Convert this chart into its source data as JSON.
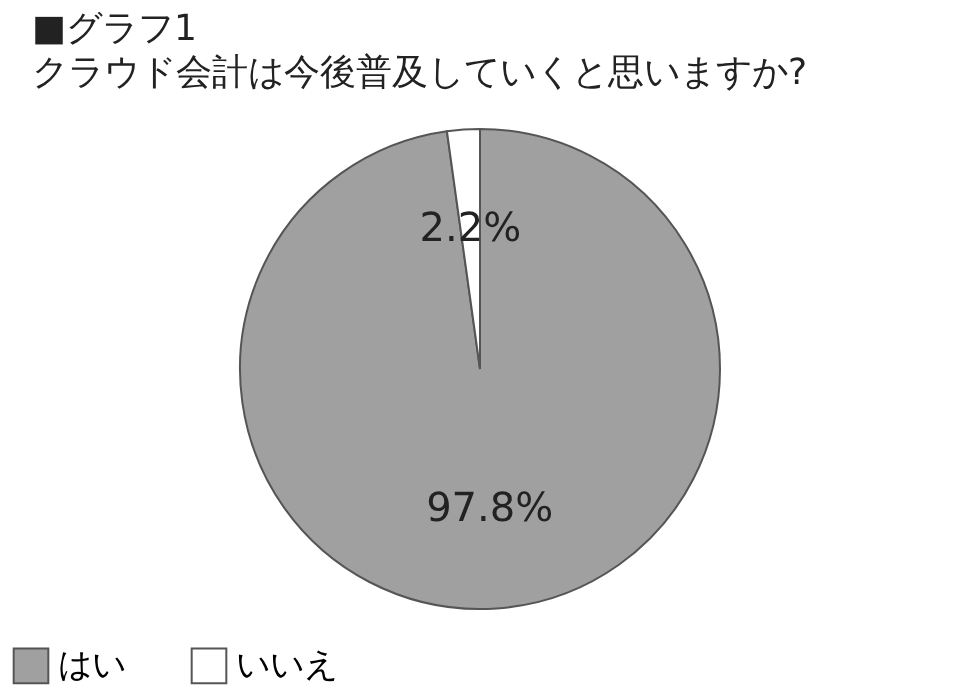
{
  "chart_data": {
    "type": "pie",
    "title": "■グラフ1",
    "subtitle": "クラウド会計は今後普及していくと思いますか?",
    "categories": [
      "はい",
      "いいえ"
    ],
    "values": [
      97.8,
      2.2
    ],
    "colors": [
      "#a0a0a0",
      "#ffffff"
    ],
    "value_labels": [
      "97.8%",
      "2.2%"
    ],
    "legend": "bottom"
  }
}
